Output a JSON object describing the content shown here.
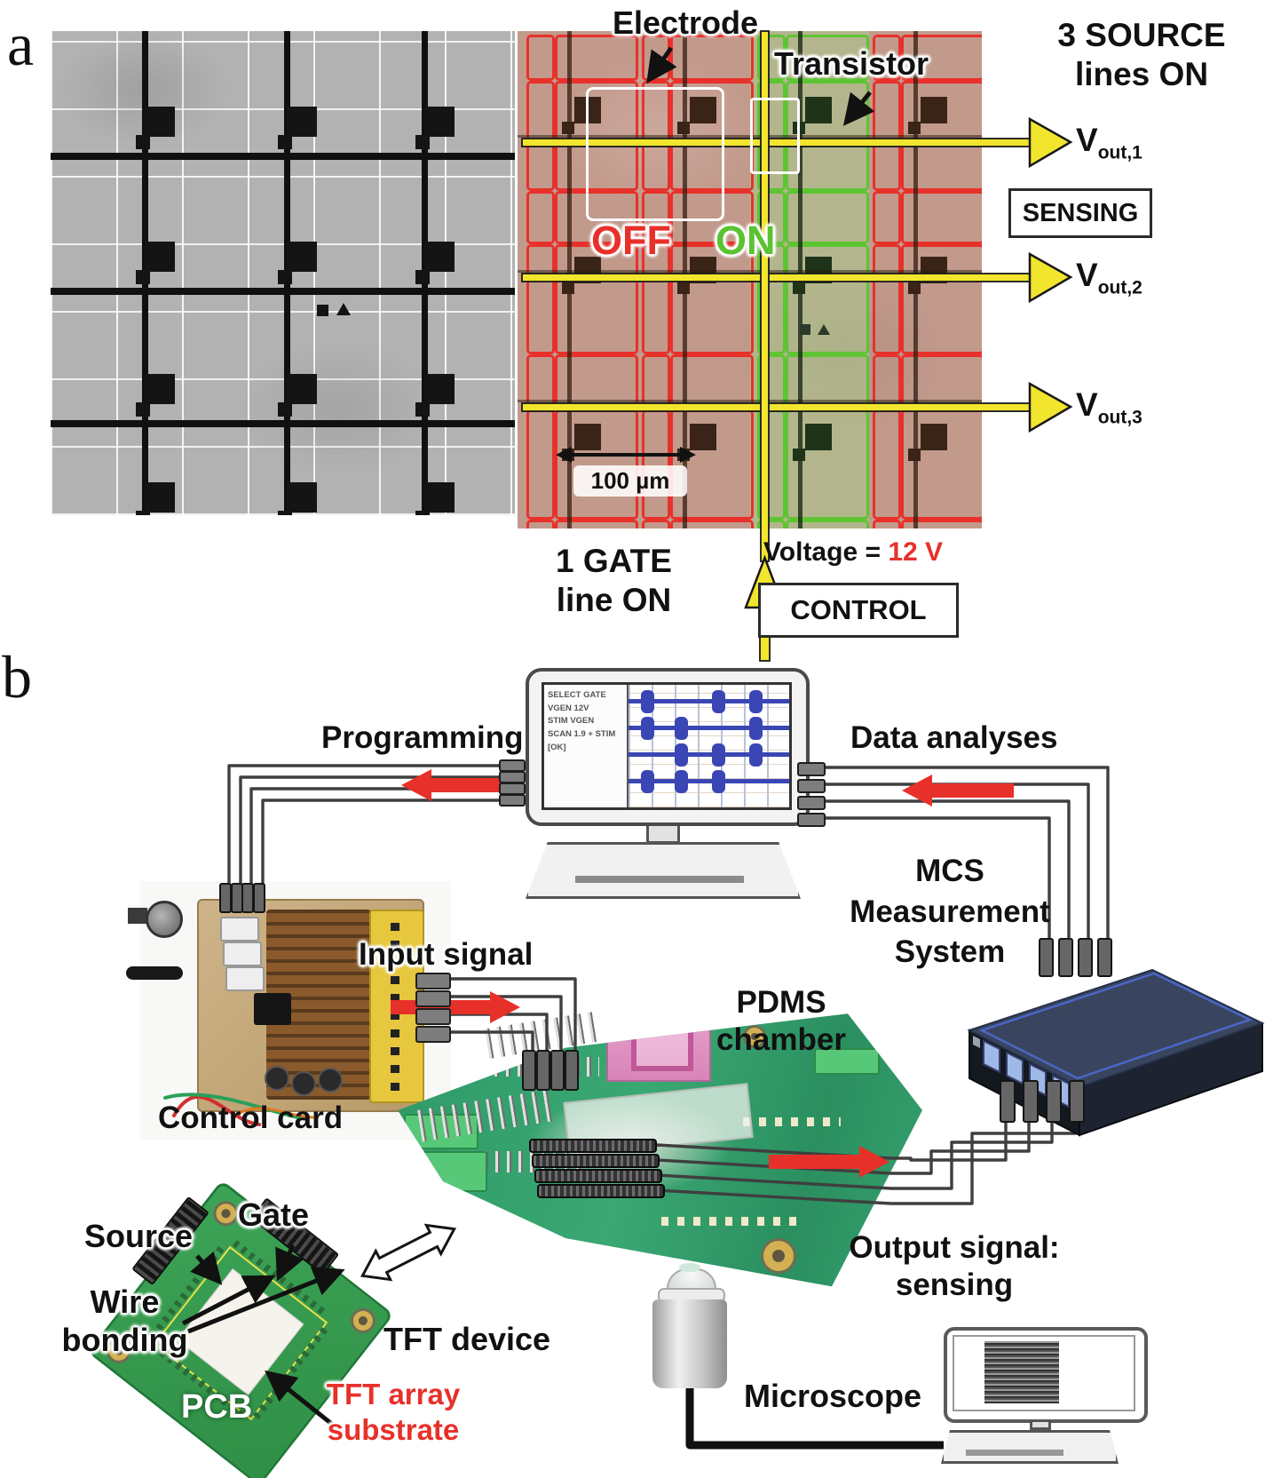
{
  "panel_a": {
    "tag": "a",
    "electrode_label": "Electrode",
    "transistor_label": "Transistor",
    "source_lines_label": [
      "3 SOURCE",
      "lines ON"
    ],
    "sensing_label": "SENSING",
    "vout_labels": [
      {
        "base": "V",
        "sub": "out,1"
      },
      {
        "base": "V",
        "sub": "out,2"
      },
      {
        "base": "V",
        "sub": "out,3"
      }
    ],
    "off_label": "OFF",
    "on_label": "ON",
    "scale_label": "100 µm",
    "gate_label": [
      "1 GATE",
      "line ON"
    ],
    "voltage_label": "Voltage =",
    "voltage_value": "12 V",
    "control_label": "CONTROL"
  },
  "panel_b": {
    "tag": "b",
    "programming_label": "Programming",
    "data_analyses_label": "Data analyses",
    "input_signal_label": "Input signal",
    "control_card_label": "Control card",
    "pdms_label": [
      "PDMS",
      "chamber"
    ],
    "mcs_label": [
      "MCS",
      "Measurement",
      "System"
    ],
    "output_label": [
      "Output signal:",
      "sensing"
    ],
    "microscope_label": "Microscope",
    "tft_device_label": "TFT device",
    "source_label": "Source",
    "gate_label": "Gate",
    "wire_bonding_label": [
      "Wire",
      "bonding"
    ],
    "pcb_label": "PCB",
    "tft_array_label": [
      "TFT array",
      "substrate"
    ],
    "screen_lines": [
      "SELECT GATE",
      "VGEN 12V",
      "STIM VGEN",
      "SCAN 1.9 + STIM",
      "[OK]"
    ]
  },
  "colors": {
    "accent_red": "#e8302a",
    "accent_green": "#5bc232",
    "line_yellow": "#f2e52e",
    "pcb_green": "#2f9a68",
    "mcs_navy": "#202a40",
    "trace_blue": "#3a46b4"
  }
}
